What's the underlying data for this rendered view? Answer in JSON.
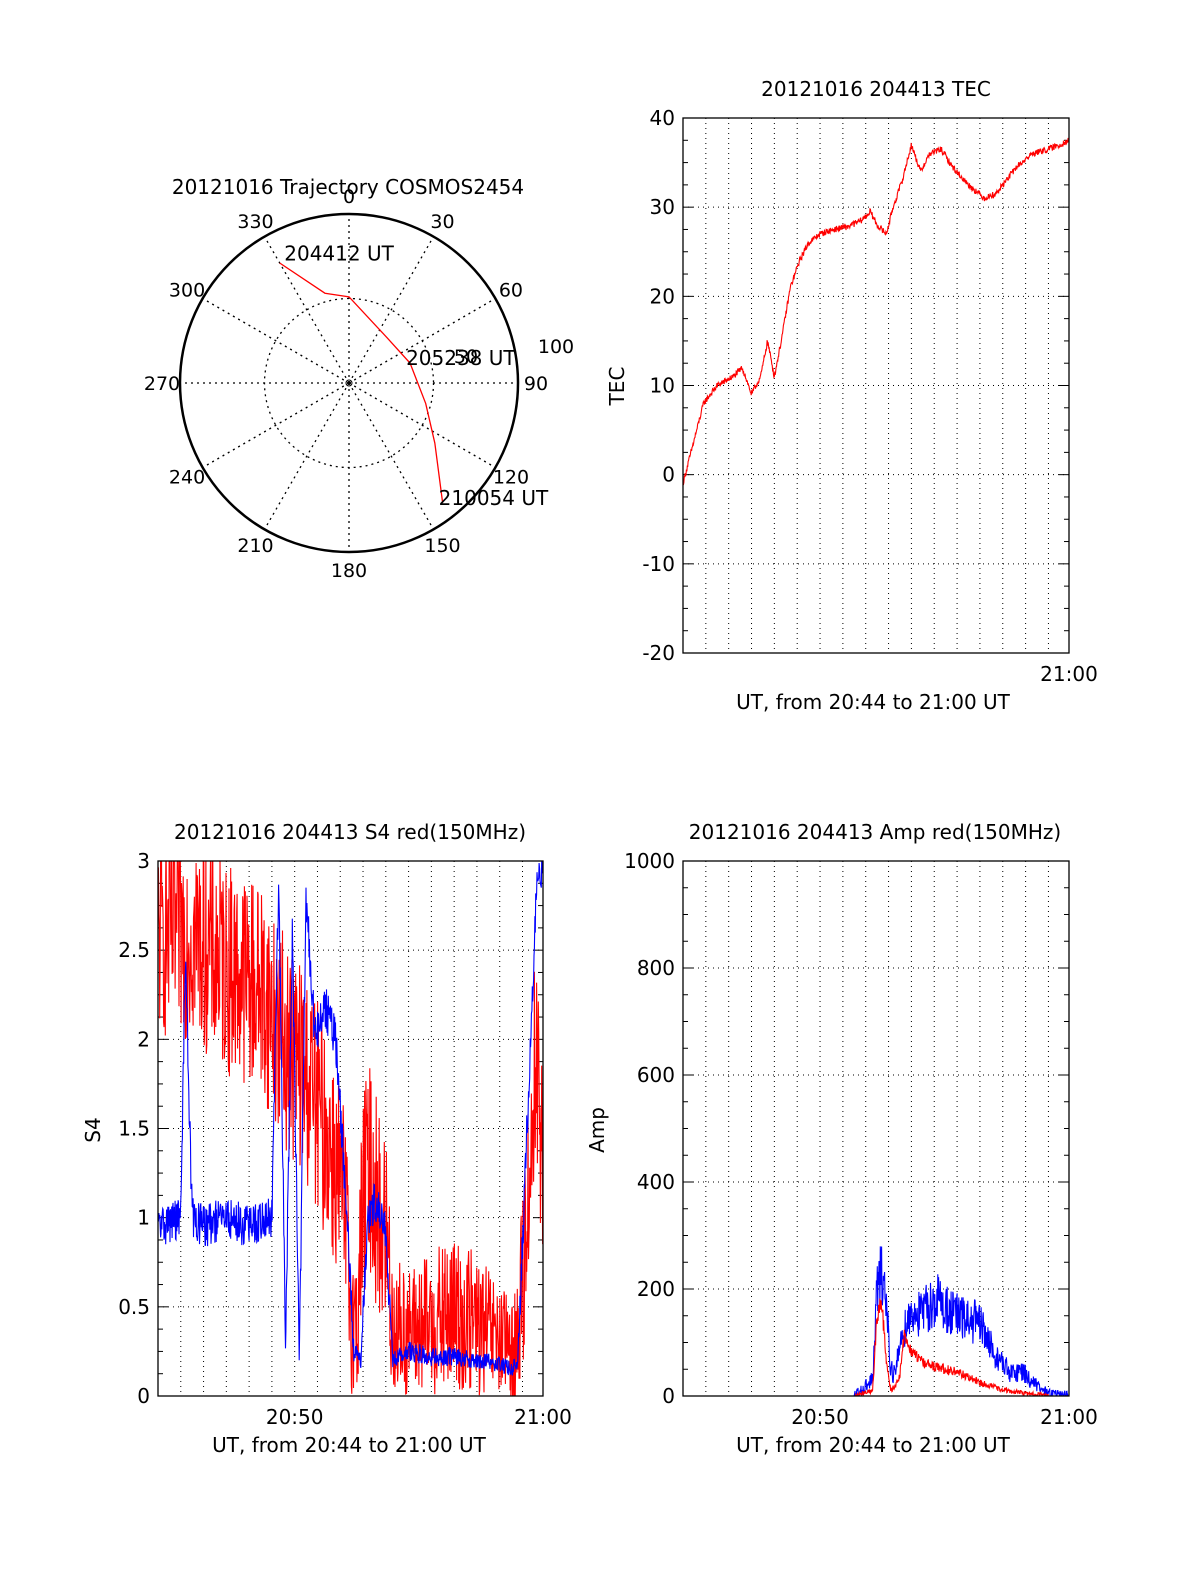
{
  "colors": {
    "red": "#ff0000",
    "blue": "#0000ff",
    "axis": "#000000",
    "grid": "#000000",
    "background": "#ffffff"
  },
  "chart_data": [
    {
      "type": "polar",
      "title": "20121016 Trajectory COSMOS2454",
      "azimuth_labels": [
        "0",
        "30",
        "60",
        "90",
        "120",
        "150",
        "180",
        "210",
        "240",
        "270",
        "300",
        "330"
      ],
      "ring_labels": [
        "50",
        "100"
      ],
      "grid": true,
      "series": [
        {
          "color": "red",
          "points": [
            {
              "az": 330,
              "r": 0.82
            },
            {
              "az": 345,
              "r": 0.55
            },
            {
              "az": 0,
              "r": 0.51
            },
            {
              "az": 40,
              "r": 0.35
            },
            {
              "az": 72,
              "r": 0.38
            },
            {
              "az": 105,
              "r": 0.47
            },
            {
              "az": 125,
              "r": 0.62
            },
            {
              "az": 142,
              "r": 0.9
            }
          ]
        }
      ],
      "annotations": [
        {
          "text": "204412 UT",
          "az": 334,
          "r": 0.82
        },
        {
          "text": "205238 UT",
          "az": 72,
          "r": 0.38
        },
        {
          "text": "210054 UT",
          "az": 142,
          "r": 0.9
        }
      ]
    },
    {
      "type": "line",
      "title": "20121016 204413 TEC",
      "xlabel": "UT, from 20:44 to 21:00 UT",
      "ylabel": "TEC",
      "xlim": [
        0,
        16.9
      ],
      "ylim": [
        -20,
        40
      ],
      "yticks": [
        -20,
        -10,
        0,
        10,
        20,
        30,
        40
      ],
      "xtick_labels": [
        {
          "x": 16.9,
          "label": "21:00"
        }
      ],
      "grid": true,
      "series": [
        {
          "color": "red",
          "noise": 0.35,
          "x": [
            0,
            0.5,
            0.9,
            1.5,
            2.2,
            2.6,
            3.0,
            3.4,
            3.7,
            4.0,
            4.3,
            4.7,
            5.1,
            5.5,
            6.0,
            6.6,
            7.2,
            7.8,
            8.2,
            8.5,
            8.9,
            9.2,
            9.6,
            10.0,
            10.4,
            10.8,
            11.3,
            11.8,
            12.5,
            13.2,
            13.7,
            14.0,
            14.6,
            15.3,
            16.0,
            16.5,
            16.9
          ],
          "y": [
            -1,
            4,
            8,
            10,
            11,
            12,
            9,
            11,
            15,
            11,
            15,
            21,
            24,
            26,
            27,
            27.5,
            27.8,
            28.5,
            29.5,
            28,
            27,
            30,
            33,
            37,
            34,
            36,
            36.5,
            34.5,
            32.5,
            31,
            31.5,
            32.5,
            34.5,
            36,
            36.5,
            37,
            37.5
          ]
        }
      ]
    },
    {
      "type": "line",
      "title": "20121016 204413 S4 red(150MHz)",
      "xlabel": "UT, from 20:44 to 21:00 UT",
      "ylabel": "S4",
      "xlim": [
        0,
        16.9
      ],
      "ylim": [
        0,
        3
      ],
      "yticks": [
        0,
        0.5,
        1,
        1.5,
        2,
        2.5,
        3
      ],
      "ytick_labels": [
        "0",
        "0.5",
        "1",
        "1.5",
        "2",
        "2.5",
        "3"
      ],
      "xtick_labels": [
        {
          "x": 6,
          "label": "20:50"
        },
        {
          "x": 16.9,
          "label": "21:00"
        }
      ],
      "grid": true,
      "series": [
        {
          "color": "red",
          "noise": 0.6,
          "x": [
            0,
            1.5,
            3.0,
            4.5,
            5.5,
            6.5,
            7.3,
            7.8,
            8.2,
            8.5,
            8.7,
            9.0,
            9.3,
            9.7,
            10.0,
            10.3,
            11.0,
            12.0,
            13.0,
            14.0,
            15.0,
            15.5,
            15.8,
            16.3,
            16.6,
            16.9
          ],
          "y": [
            2.6,
            2.6,
            2.4,
            2.3,
            2.0,
            1.8,
            1.5,
            1.3,
            1.0,
            0.5,
            0.35,
            1.1,
            1.3,
            1.0,
            0.9,
            0.4,
            0.35,
            0.4,
            0.45,
            0.4,
            0.3,
            0.25,
            0.3,
            1.2,
            2.0,
            1.2
          ]
        },
        {
          "color": "blue",
          "noise": 0.12,
          "x": [
            0,
            1.0,
            1.2,
            1.5,
            2.0,
            3.0,
            4.0,
            5.0,
            5.3,
            5.6,
            5.9,
            6.2,
            6.5,
            6.9,
            7.3,
            7.8,
            8.2,
            8.6,
            8.9,
            9.2,
            9.6,
            10.0,
            10.3,
            11.0,
            12.0,
            13.0,
            14.0,
            15.0,
            15.5,
            15.8,
            16.2,
            16.6,
            16.9
          ],
          "y": [
            0.95,
            1.0,
            2.5,
            1.0,
            0.95,
            1.0,
            0.95,
            1.0,
            2.9,
            0.3,
            2.6,
            0.2,
            2.8,
            2.0,
            2.2,
            2.0,
            1.2,
            0.25,
            0.2,
            1.0,
            1.1,
            0.9,
            0.2,
            0.25,
            0.22,
            0.22,
            0.2,
            0.18,
            0.15,
            0.2,
            1.5,
            2.8,
            3.0
          ]
        }
      ]
    },
    {
      "type": "line",
      "title": "20121016 204413 Amp red(150MHz)",
      "xlabel": "UT, from 20:44 to 21:00 UT",
      "ylabel": "Amp",
      "xlim": [
        0,
        16.9
      ],
      "ylim": [
        0,
        1000
      ],
      "yticks": [
        0,
        200,
        400,
        600,
        800,
        1000
      ],
      "xtick_labels": [
        {
          "x": 6,
          "label": "20:50"
        },
        {
          "x": 16.9,
          "label": "21:00"
        }
      ],
      "grid": true,
      "series": [
        {
          "color": "blue",
          "noise": 60,
          "x": [
            0,
            6.0,
            7.5,
            8.3,
            8.5,
            8.7,
            8.9,
            9.1,
            9.3,
            9.5,
            9.8,
            10.1,
            10.4,
            10.8,
            11.2,
            11.6,
            12.0,
            12.4,
            12.8,
            13.2,
            13.6,
            14.0,
            14.4,
            14.8,
            15.2,
            15.6,
            16.0,
            16.9
          ],
          "y": [
            0,
            0,
            0,
            30,
            200,
            230,
            180,
            50,
            40,
            100,
            140,
            160,
            150,
            170,
            180,
            160,
            150,
            140,
            140,
            120,
            80,
            60,
            40,
            50,
            30,
            15,
            5,
            0
          ]
        },
        {
          "color": "red",
          "noise": 25,
          "x": [
            0,
            6.0,
            7.5,
            8.3,
            8.5,
            8.7,
            8.9,
            9.1,
            9.3,
            9.5,
            9.7,
            9.9,
            10.2,
            10.6,
            11.0,
            11.5,
            12.0,
            12.5,
            13.0,
            13.5,
            14.0,
            14.5,
            15.0,
            15.5,
            16.0,
            16.9
          ],
          "y": [
            0,
            0,
            0,
            10,
            150,
            180,
            60,
            10,
            20,
            40,
            120,
            90,
            75,
            60,
            55,
            50,
            45,
            35,
            25,
            18,
            12,
            8,
            5,
            3,
            0,
            0
          ]
        }
      ]
    }
  ]
}
